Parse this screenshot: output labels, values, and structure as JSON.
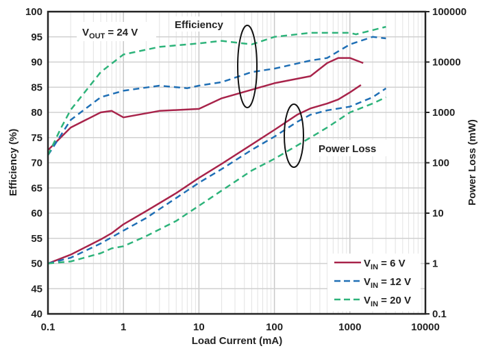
{
  "chart_data": {
    "type": "line",
    "xlabel": "Load Current (mA)",
    "ylabel": "Efficiency (%)",
    "y2label": "Power Loss (mW)",
    "x_scale": "log",
    "xlim": [
      0.1,
      10000
    ],
    "ylim": [
      40,
      100
    ],
    "y2_scale": "log",
    "y2lim": [
      0.1,
      100000
    ],
    "grid": true,
    "legend_position": "bottom-right",
    "x_ticks": [
      "0.1",
      "1",
      "10",
      "100",
      "1000",
      "10000"
    ],
    "y_ticks": [
      "40",
      "45",
      "50",
      "55",
      "60",
      "65",
      "70",
      "75",
      "80",
      "85",
      "90",
      "95",
      "100"
    ],
    "y2_ticks": [
      "0.1",
      "1",
      "10",
      "100",
      "1000",
      "10000",
      "100000"
    ],
    "annotations": {
      "vout": {
        "main": "V",
        "sub": "OUT",
        "rest": " = 24 V"
      },
      "efficiency": "Efficiency",
      "power_loss": "Power Loss"
    },
    "series": [
      {
        "name": "VIN = 6 V",
        "label_main": "V",
        "label_sub": "IN",
        "label_rest": " = 6 V",
        "color": "#a8234a",
        "dash": "solid",
        "efficiency": {
          "x": [
            0.1,
            0.2,
            0.5,
            0.7,
            1,
            3,
            10,
            20,
            50,
            100,
            300,
            500,
            700,
            1000,
            1500
          ],
          "y": [
            72.5,
            77,
            80,
            80.3,
            79,
            80.3,
            80.7,
            82.8,
            84.5,
            85.8,
            87.2,
            89.8,
            90.8,
            90.8,
            89.8
          ]
        },
        "power_loss": {
          "x": [
            0.1,
            0.2,
            0.5,
            0.7,
            1,
            2,
            5,
            10,
            20,
            50,
            100,
            200,
            300,
            500,
            700,
            1000,
            1400
          ],
          "y": [
            1.0,
            1.5,
            3.0,
            4.0,
            6.0,
            11,
            25,
            50,
            95,
            230,
            450,
            900,
            1200,
            1500,
            1800,
            2500,
            3500
          ]
        }
      },
      {
        "name": "VIN = 12 V",
        "label_main": "V",
        "label_sub": "IN",
        "label_rest": " = 12 V",
        "color": "#1f6fb5",
        "dash": "dashed",
        "efficiency": {
          "x": [
            0.1,
            0.2,
            0.5,
            1,
            3,
            7,
            10,
            20,
            50,
            100,
            200,
            300,
            500,
            1000,
            2000,
            3000
          ],
          "y": [
            71.5,
            78.5,
            83,
            84.3,
            85.3,
            84.8,
            85.3,
            86,
            88,
            88.7,
            89.7,
            90.3,
            90.8,
            93.5,
            95,
            94.7
          ]
        },
        "power_loss": {
          "x": [
            0.1,
            0.2,
            0.5,
            1,
            2,
            5,
            10,
            20,
            50,
            100,
            200,
            300,
            500,
            1000,
            2000,
            3000
          ],
          "y": [
            1.0,
            1.3,
            2.5,
            4.5,
            8,
            20,
            40,
            75,
            180,
            330,
            650,
            900,
            1100,
            1300,
            2000,
            3000
          ]
        }
      },
      {
        "name": "VIN = 20 V",
        "label_main": "V",
        "label_sub": "IN",
        "label_rest": " = 20 V",
        "color": "#2db37a",
        "dash": "dashed",
        "efficiency": {
          "x": [
            0.1,
            0.15,
            0.2,
            0.5,
            1,
            3,
            10,
            20,
            50,
            100,
            300,
            1000,
            1200,
            3000
          ],
          "y": [
            71.5,
            77,
            80.5,
            88,
            91.5,
            93,
            93.7,
            94.2,
            93.5,
            95,
            95.8,
            95.8,
            95.5,
            97
          ]
        },
        "power_loss": {
          "x": [
            0.1,
            0.2,
            0.5,
            0.7,
            1,
            2,
            5,
            10,
            20,
            50,
            100,
            200,
            500,
            1000,
            2000,
            3000
          ],
          "y": [
            1.0,
            1.1,
            1.6,
            2.0,
            2.2,
            3.5,
            7,
            14,
            28,
            70,
            120,
            220,
            500,
            1000,
            1500,
            2000
          ]
        }
      }
    ]
  }
}
